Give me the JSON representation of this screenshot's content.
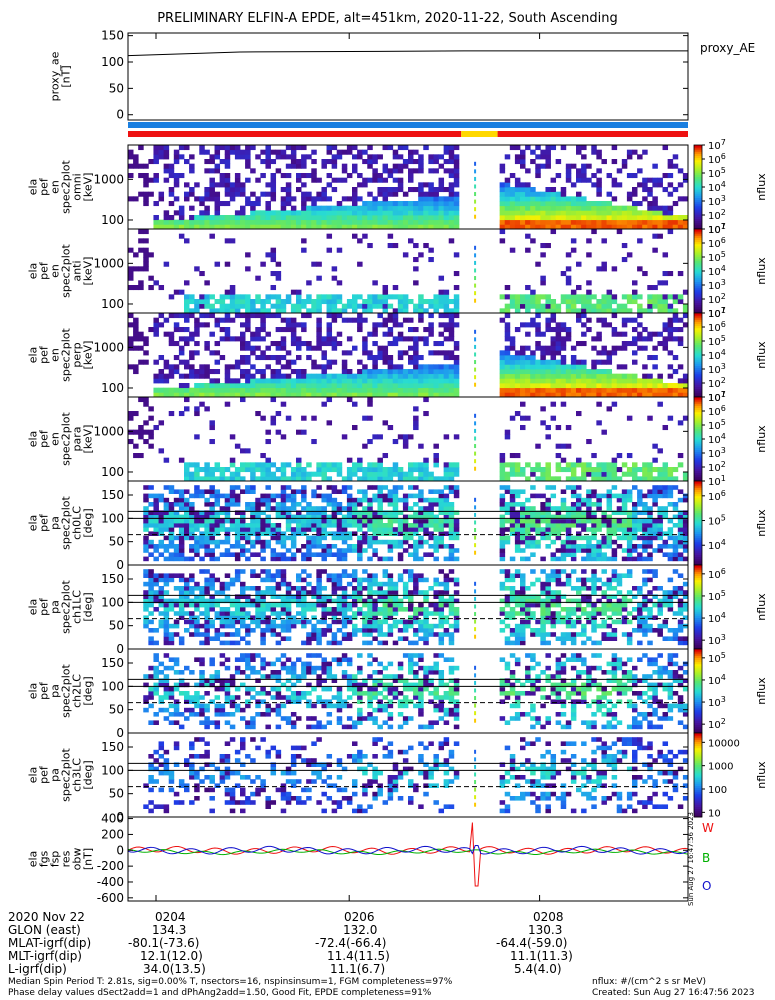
{
  "title": "PRELIMINARY ELFIN-A EPDE, alt=451km, 2020-11-22, South Ascending",
  "chart_data": {
    "type": "multi-panel",
    "panels": [
      {
        "id": "proxy_ae",
        "type": "line",
        "ylabel": [
          "proxy_ae",
          "[nT]"
        ],
        "yticks": [
          "0",
          "50",
          "100",
          "150"
        ],
        "ylim": [
          -10,
          155
        ],
        "legend": "proxy_AE",
        "x": [
          0.0,
          0.2,
          0.6,
          1.0
        ],
        "values": [
          112,
          119,
          121,
          121
        ]
      },
      {
        "id": "bar",
        "type": "status-bar",
        "top_color": "#1a7fe0",
        "segments": [
          {
            "start": 0.0,
            "end": 0.595,
            "color": "#ee1111"
          },
          {
            "start": 0.595,
            "end": 0.66,
            "color": "#ffd800"
          },
          {
            "start": 0.66,
            "end": 1.0,
            "color": "#ee1111"
          }
        ]
      },
      {
        "id": "en1",
        "type": "heatmap",
        "ylabel": [
          "ela",
          "pef",
          "en",
          "spec2plot",
          "omni",
          "[keV]"
        ],
        "yticks": [
          "100",
          "1000"
        ],
        "ylog": true,
        "ylim": [
          60,
          7000
        ],
        "colorbar": {
          "label": "nflux",
          "ticks": [
            "10^1",
            "10^2",
            "10^3",
            "10^4",
            "10^5",
            "10^6",
            "10^7"
          ],
          "range": [
            1,
            7
          ]
        },
        "pattern": "omni_strong"
      },
      {
        "id": "en2",
        "type": "heatmap",
        "ylabel": [
          "ela",
          "pef",
          "en",
          "spec2plot",
          "anti",
          "[keV]"
        ],
        "yticks": [
          "100",
          "1000"
        ],
        "ylog": true,
        "ylim": [
          60,
          7000
        ],
        "colorbar": {
          "label": "nflux",
          "ticks": [
            "10^1",
            "10^2",
            "10^3",
            "10^4",
            "10^5",
            "10^6",
            "10^7"
          ],
          "range": [
            1,
            7
          ]
        },
        "pattern": "anti_weak"
      },
      {
        "id": "en3",
        "type": "heatmap",
        "ylabel": [
          "ela",
          "pef",
          "en",
          "spec2plot",
          "perp",
          "[keV]"
        ],
        "yticks": [
          "100",
          "1000"
        ],
        "ylog": true,
        "ylim": [
          60,
          7000
        ],
        "colorbar": {
          "label": "nflux",
          "ticks": [
            "10^1",
            "10^2",
            "10^3",
            "10^4",
            "10^5",
            "10^6",
            "10^7"
          ],
          "range": [
            1,
            7
          ]
        },
        "pattern": "perp_strong"
      },
      {
        "id": "en4",
        "type": "heatmap",
        "ylabel": [
          "ela",
          "pef",
          "en",
          "spec2plot",
          "para",
          "[keV]"
        ],
        "yticks": [
          "100",
          "1000"
        ],
        "ylog": true,
        "ylim": [
          60,
          7000
        ],
        "colorbar": {
          "label": "nflux",
          "ticks": [
            "10^1",
            "10^2",
            "10^3",
            "10^4",
            "10^5",
            "10^6",
            "10^7"
          ],
          "range": [
            1,
            7
          ]
        },
        "pattern": "para_weak"
      },
      {
        "id": "pa0",
        "type": "heatmap",
        "ylabel": [
          "ela",
          "pef",
          "pa",
          "spec2plot",
          "ch0LC",
          "[deg]"
        ],
        "yticks": [
          "0",
          "50",
          "100",
          "150"
        ],
        "ylim": [
          0,
          180
        ],
        "lc_lines": [
          65,
          100,
          115
        ],
        "colorbar": {
          "label": "nflux",
          "ticks": [
            "10^4",
            "10^5",
            "10^6"
          ],
          "range": [
            3.2,
            6.6
          ]
        },
        "pattern": "pa_strong"
      },
      {
        "id": "pa1",
        "type": "heatmap",
        "ylabel": [
          "ela",
          "pef",
          "pa",
          "spec2plot",
          "ch1LC",
          "[deg]"
        ],
        "yticks": [
          "0",
          "50",
          "100",
          "150"
        ],
        "ylim": [
          0,
          180
        ],
        "lc_lines": [
          65,
          100,
          115
        ],
        "colorbar": {
          "label": "nflux",
          "ticks": [
            "10^3",
            "10^4",
            "10^5",
            "10^6"
          ],
          "range": [
            2.6,
            6.4
          ]
        },
        "pattern": "pa_medium"
      },
      {
        "id": "pa2",
        "type": "heatmap",
        "ylabel": [
          "ela",
          "pef",
          "pa",
          "spec2plot",
          "ch2LC",
          "[deg]"
        ],
        "yticks": [
          "0",
          "50",
          "100",
          "150"
        ],
        "ylim": [
          0,
          180
        ],
        "lc_lines": [
          65,
          100,
          115
        ],
        "colorbar": {
          "label": "nflux",
          "ticks": [
            "10^2",
            "10^3",
            "10^4",
            "10^5"
          ],
          "range": [
            1.6,
            5.4
          ]
        },
        "pattern": "pa_weak"
      },
      {
        "id": "pa3",
        "type": "heatmap",
        "ylabel": [
          "ela",
          "pef",
          "pa",
          "spec2plot",
          "ch3LC",
          "[deg]"
        ],
        "yticks": [
          "0",
          "50",
          "100",
          "150"
        ],
        "ylim": [
          0,
          180
        ],
        "lc_lines": [
          65,
          100,
          115
        ],
        "colorbar": {
          "label": "nflux",
          "ticks": [
            "10",
            "100",
            "1000",
            "10000"
          ],
          "range": [
            0.8,
            4.4
          ]
        },
        "pattern": "pa_sparse"
      },
      {
        "id": "fgm",
        "type": "line",
        "ylabel": [
          "ela",
          "fgs",
          "fsp",
          "res",
          "obw",
          "[nT]"
        ],
        "yticks": [
          "-600",
          "-400",
          "-200",
          "0",
          "200",
          "400"
        ],
        "ylim": [
          -640,
          420
        ],
        "legend": [
          "W",
          "B",
          "O"
        ],
        "series_colors": [
          "#ee1111",
          "#00b000",
          "#1111cc"
        ]
      }
    ],
    "time_axis": {
      "date": "2020 Nov 22",
      "ticks": [
        "0204",
        "0206",
        "0208"
      ],
      "rows": [
        {
          "label": "GLON (east)",
          "values": [
            "134.3",
            "132.0",
            "130.3"
          ]
        },
        {
          "label": "MLAT-igrf(dip)",
          "values": [
            "-80.1(-73.6)",
            "-72.4(-66.4)",
            "-64.4(-59.0)"
          ]
        },
        {
          "label": "MLT-igrf(dip)",
          "values": [
            "12.1(12.0)",
            "11.4(11.5)",
            "11.1(11.3)"
          ]
        },
        {
          "label": "L-igrf(dip)",
          "values": [
            "34.0(13.5)",
            "11.1(6.7)",
            "5.4(4.0)"
          ]
        }
      ]
    },
    "side_stamp": "Sun Aug 27 16:47:56 2023"
  },
  "footer": {
    "left1": "Median Spin Period T: 2.81s, sig=0.00% T, nsectors=16, nspinsinsum=1, FGM completeness=97%",
    "left2": "Phase delay values dSect2add=1 and dPhAng2add=1.50, Good Fit, EPDE completeness=91%",
    "right1": "nflux: #/(cm^2 s sr MeV)",
    "right2": "Created: Sun Aug 27 16:47:56 2023"
  }
}
